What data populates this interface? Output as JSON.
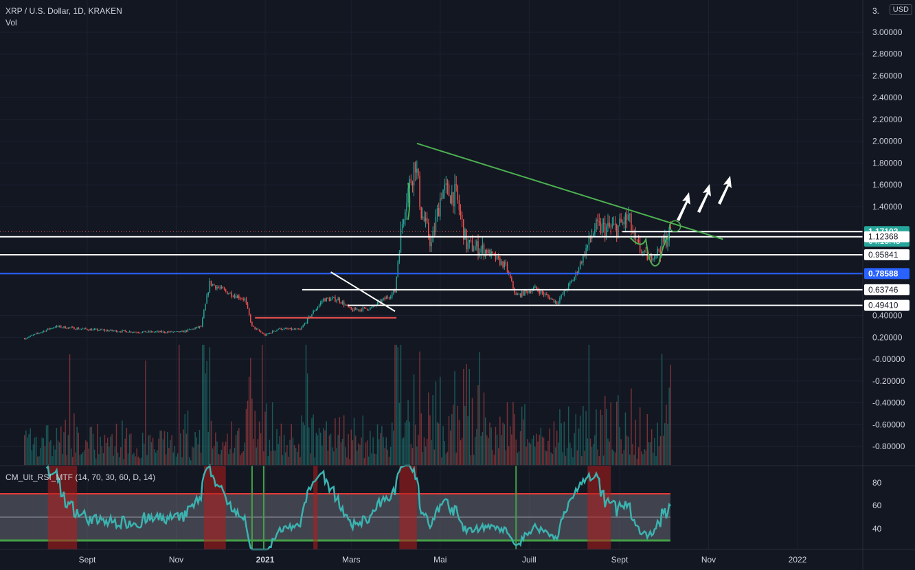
{
  "header": {
    "symbol_line": "XRP / U.S. Dollar, 1D, KRAKEN",
    "volume_label": "Vol",
    "currency": "USD",
    "axis_top_tick": "3."
  },
  "indicator": {
    "name": "CM_Ult_RSI_MTF (14, 70, 30, 60, D, 14)",
    "ticks": [
      "80",
      "60",
      "40"
    ],
    "overbought": 70,
    "oversold": 30,
    "midline": 50
  },
  "colors": {
    "background": "#131722",
    "up": "#26a69a",
    "down": "#ef5350",
    "trendline": "#4caf50",
    "support_blue": "#2962ff",
    "rsi_line": "#3bb3b0",
    "rsi_band": "#787b86",
    "rsi_overbought": "#e53935",
    "rsi_oversold": "#43a047"
  },
  "chart_data": {
    "type": "candlestick",
    "title": "XRP / U.S. Dollar, 1D, KRAKEN",
    "x_tick_labels": [
      "Sept",
      "Nov",
      "2021",
      "Mars",
      "Mai",
      "Juill",
      "Sept",
      "Nov",
      "2022"
    ],
    "x_tick_dates": [
      "2020-09-01",
      "2020-11-01",
      "2021-01-01",
      "2021-03-01",
      "2021-05-01",
      "2021-07-01",
      "2021-09-01",
      "2021-11-01",
      "2022-01-01"
    ],
    "y_tick_labels": [
      "3.00000",
      "2.80000",
      "2.60000",
      "2.40000",
      "2.20000",
      "2.00000",
      "1.80000",
      "1.60000",
      "1.40000",
      "0.40000",
      "0.20000",
      "-0.00000",
      "-0.20000",
      "-0.40000",
      "-0.60000",
      "-0.80000"
    ],
    "ylim": [
      -0.9,
      3.15
    ],
    "price_path": [
      [
        "2020-07-20",
        0.19
      ],
      [
        "2020-08-10",
        0.3
      ],
      [
        "2020-09-05",
        0.27
      ],
      [
        "2020-10-05",
        0.25
      ],
      [
        "2020-11-05",
        0.25
      ],
      [
        "2020-11-18",
        0.3
      ],
      [
        "2020-11-24",
        0.7
      ],
      [
        "2020-12-05",
        0.62
      ],
      [
        "2020-12-18",
        0.55
      ],
      [
        "2020-12-23",
        0.3
      ],
      [
        "2021-01-01",
        0.22
      ],
      [
        "2021-01-10",
        0.28
      ],
      [
        "2021-01-25",
        0.27
      ],
      [
        "2021-02-01",
        0.4
      ],
      [
        "2021-02-10",
        0.55
      ],
      [
        "2021-02-20",
        0.55
      ],
      [
        "2021-03-01",
        0.45
      ],
      [
        "2021-03-15",
        0.47
      ],
      [
        "2021-03-31",
        0.62
      ],
      [
        "2021-04-03",
        1.05
      ],
      [
        "2021-04-07",
        1.45
      ],
      [
        "2021-04-14",
        1.82
      ],
      [
        "2021-04-18",
        1.35
      ],
      [
        "2021-04-25",
        1.05
      ],
      [
        "2021-05-02",
        1.55
      ],
      [
        "2021-05-12",
        1.5
      ],
      [
        "2021-05-19",
        1.05
      ],
      [
        "2021-06-01",
        1.0
      ],
      [
        "2021-06-15",
        0.85
      ],
      [
        "2021-06-22",
        0.58
      ],
      [
        "2021-07-05",
        0.65
      ],
      [
        "2021-07-20",
        0.52
      ],
      [
        "2021-08-01",
        0.75
      ],
      [
        "2021-08-15",
        1.2
      ],
      [
        "2021-08-30",
        1.2
      ],
      [
        "2021-09-07",
        1.3
      ],
      [
        "2021-09-12",
        1.05
      ],
      [
        "2021-09-21",
        0.92
      ],
      [
        "2021-09-28",
        1.0
      ],
      [
        "2021-10-06",
        1.17
      ]
    ],
    "trendlines": [
      {
        "name": "resistance",
        "from": [
          "2021-04-15",
          1.98
        ],
        "to": [
          "2021-11-11",
          1.1
        ]
      },
      {
        "name": "descending",
        "from": [
          "2021-02-15",
          0.8
        ],
        "to": [
          "2021-03-31",
          0.44
        ]
      },
      {
        "name": "support_red",
        "from": [
          "2020-12-25",
          0.38
        ],
        "to": [
          "2021-04-01",
          0.38
        ]
      }
    ],
    "horizontal_levels": [
      {
        "price": 1.17103,
        "label": "1.17103",
        "sublabel": "04:15:45",
        "style": "current"
      },
      {
        "price": 1.12368,
        "label": "1.12368",
        "style": "white"
      },
      {
        "price": 0.95841,
        "label": "0.95841",
        "style": "white"
      },
      {
        "price": 0.78588,
        "label": "0.78588",
        "style": "blue"
      },
      {
        "price": 0.63746,
        "label": "0.63746",
        "style": "white"
      },
      {
        "price": 0.4941,
        "label": "0.49410",
        "style": "white"
      }
    ],
    "arrows_count": 3
  }
}
